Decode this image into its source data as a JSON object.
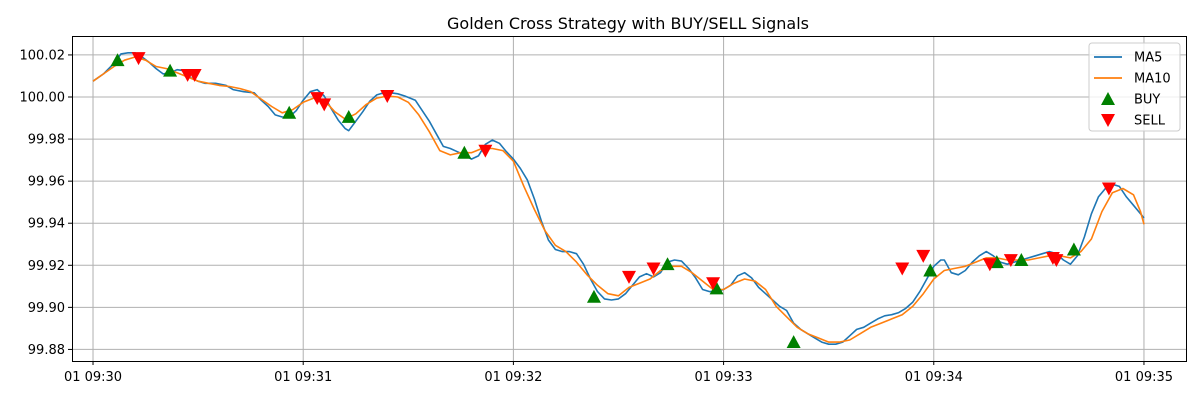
{
  "chart_data": {
    "type": "line",
    "title": "Golden Cross Strategy with BUY/SELL Signals",
    "xlabel": "",
    "ylabel": "",
    "x_range_seconds": [
      0,
      300
    ],
    "xlim_seconds": [
      -6,
      312
    ],
    "ylim": [
      99.8745,
      100.029
    ],
    "x_ticks": [
      {
        "t": 0,
        "label": "01 09:30"
      },
      {
        "t": 60,
        "label": "01 09:31"
      },
      {
        "t": 120,
        "label": "01 09:32"
      },
      {
        "t": 180,
        "label": "01 09:33"
      },
      {
        "t": 240,
        "label": "01 09:34"
      },
      {
        "t": 300,
        "label": "01 09:35"
      }
    ],
    "y_ticks": [
      {
        "v": 99.88,
        "label": "99.88"
      },
      {
        "v": 99.9,
        "label": "99.90"
      },
      {
        "v": 99.92,
        "label": "99.92"
      },
      {
        "v": 99.94,
        "label": "99.94"
      },
      {
        "v": 99.96,
        "label": "99.96"
      },
      {
        "v": 99.98,
        "label": "99.98"
      },
      {
        "v": 100.0,
        "label": "100.00"
      },
      {
        "v": 100.02,
        "label": "100.02"
      }
    ],
    "grid": true,
    "legend_position": "top-right",
    "series": [
      {
        "name": "MA5",
        "color": "#1f77b4",
        "points": [
          [
            0,
            100.0075
          ],
          [
            3,
            100.011
          ],
          [
            6,
            100.016
          ],
          [
            8,
            100.0205
          ],
          [
            10,
            100.021
          ],
          [
            12,
            100.021
          ],
          [
            14,
            100.019
          ],
          [
            16,
            100.0165
          ],
          [
            18,
            100.0135
          ],
          [
            20,
            100.011
          ],
          [
            22,
            100.0115
          ],
          [
            24,
            100.013
          ],
          [
            26,
            100.0125
          ],
          [
            28,
            100.009
          ],
          [
            30,
            100.0075
          ],
          [
            32,
            100.0065
          ],
          [
            35,
            100.0065
          ],
          [
            38,
            100.0055
          ],
          [
            40,
            100.0035
          ],
          [
            43,
            100.0025
          ],
          [
            46,
            100.002
          ],
          [
            48,
            99.9985
          ],
          [
            50,
            99.9955
          ],
          [
            52,
            99.9915
          ],
          [
            54,
            99.9905
          ],
          [
            56,
            99.9905
          ],
          [
            58,
            99.9935
          ],
          [
            60,
            99.9985
          ],
          [
            62,
            100.0025
          ],
          [
            64,
            100.0035
          ],
          [
            66,
            100.0005
          ],
          [
            68,
            99.9945
          ],
          [
            70,
            99.989
          ],
          [
            72,
            99.985
          ],
          [
            73,
            99.984
          ],
          [
            75,
            99.9885
          ],
          [
            77,
            99.993
          ],
          [
            79,
            99.998
          ],
          [
            81,
            100.001
          ],
          [
            83,
            100.002
          ],
          [
            85,
            100.002
          ],
          [
            87,
            100.0015
          ],
          [
            89,
            100.0005
          ],
          [
            92,
            99.9985
          ],
          [
            94,
            99.9935
          ],
          [
            96,
            99.9885
          ],
          [
            98,
            99.9825
          ],
          [
            100,
            99.9765
          ],
          [
            102,
            99.9755
          ],
          [
            104,
            99.974
          ],
          [
            106,
            99.9725
          ],
          [
            108,
            99.9705
          ],
          [
            110,
            99.972
          ],
          [
            112,
            99.9775
          ],
          [
            114,
            99.9795
          ],
          [
            116,
            99.978
          ],
          [
            118,
            99.974
          ],
          [
            120,
            99.9705
          ],
          [
            122,
            99.966
          ],
          [
            124,
            99.9605
          ],
          [
            126,
            99.9515
          ],
          [
            128,
            99.941
          ],
          [
            130,
            99.932
          ],
          [
            132,
            99.9275
          ],
          [
            134,
            99.9265
          ],
          [
            136,
            99.9265
          ],
          [
            138,
            99.9255
          ],
          [
            140,
            99.9205
          ],
          [
            142,
            99.9135
          ],
          [
            144,
            99.9075
          ],
          [
            146,
            99.904
          ],
          [
            148,
            99.9035
          ],
          [
            150,
            99.904
          ],
          [
            152,
            99.9065
          ],
          [
            154,
            99.9105
          ],
          [
            156,
            99.9145
          ],
          [
            158,
            99.916
          ],
          [
            160,
            99.9145
          ],
          [
            162,
            99.9165
          ],
          [
            164,
            99.9215
          ],
          [
            166,
            99.9225
          ],
          [
            168,
            99.922
          ],
          [
            170,
            99.9185
          ],
          [
            172,
            99.914
          ],
          [
            174,
            99.9085
          ],
          [
            176,
            99.9075
          ],
          [
            178,
            99.9075
          ],
          [
            180,
            99.9085
          ],
          [
            182,
            99.9105
          ],
          [
            184,
            99.915
          ],
          [
            186,
            99.9165
          ],
          [
            188,
            99.914
          ],
          [
            190,
            99.9095
          ],
          [
            192,
            99.9065
          ],
          [
            194,
            99.9035
          ],
          [
            196,
            99.9005
          ],
          [
            198,
            99.8985
          ],
          [
            200,
            99.8925
          ],
          [
            202,
            99.8895
          ],
          [
            204,
            99.8875
          ],
          [
            206,
            99.8855
          ],
          [
            208,
            99.8835
          ],
          [
            210,
            99.8825
          ],
          [
            212,
            99.8825
          ],
          [
            214,
            99.8835
          ],
          [
            216,
            99.8865
          ],
          [
            218,
            99.8895
          ],
          [
            220,
            99.8905
          ],
          [
            222,
            99.8925
          ],
          [
            224,
            99.8945
          ],
          [
            226,
            99.896
          ],
          [
            228,
            99.8965
          ],
          [
            230,
            99.8975
          ],
          [
            232,
            99.8995
          ],
          [
            234,
            99.9025
          ],
          [
            236,
            99.9075
          ],
          [
            238,
            99.9135
          ],
          [
            240,
            99.9195
          ],
          [
            242,
            99.9225
          ],
          [
            243,
            99.9225
          ],
          [
            245,
            99.9165
          ],
          [
            247,
            99.9155
          ],
          [
            249,
            99.9175
          ],
          [
            251,
            99.9215
          ],
          [
            253,
            99.9245
          ],
          [
            255,
            99.9265
          ],
          [
            257,
            99.9245
          ],
          [
            259,
            99.9215
          ],
          [
            261,
            99.9205
          ],
          [
            263,
            99.9215
          ],
          [
            265,
            99.9225
          ],
          [
            267,
            99.9235
          ],
          [
            269,
            99.9245
          ],
          [
            271,
            99.9255
          ],
          [
            273,
            99.9265
          ],
          [
            275,
            99.9255
          ],
          [
            277,
            99.9225
          ],
          [
            279,
            99.9205
          ],
          [
            281,
            99.9245
          ],
          [
            283,
            99.9335
          ],
          [
            285,
            99.9445
          ],
          [
            287,
            99.9525
          ],
          [
            289,
            99.9565
          ],
          [
            291,
            99.9585
          ],
          [
            293,
            99.9575
          ],
          [
            295,
            99.9525
          ],
          [
            297,
            99.9485
          ],
          [
            299,
            99.9445
          ],
          [
            300,
            99.9425
          ]
        ]
      },
      {
        "name": "MA10",
        "color": "#ff7f0e",
        "points": [
          [
            0,
            100.0075
          ],
          [
            3,
            100.011
          ],
          [
            6,
            100.0145
          ],
          [
            9,
            100.0175
          ],
          [
            12,
            100.019
          ],
          [
            15,
            100.0175
          ],
          [
            18,
            100.0145
          ],
          [
            21,
            100.0135
          ],
          [
            24,
            100.0115
          ],
          [
            27,
            100.0095
          ],
          [
            30,
            100.0075
          ],
          [
            33,
            100.0065
          ],
          [
            36,
            100.0055
          ],
          [
            39,
            100.005
          ],
          [
            42,
            100.004
          ],
          [
            45,
            100.0025
          ],
          [
            48,
            99.999
          ],
          [
            51,
            99.9955
          ],
          [
            54,
            99.9925
          ],
          [
            57,
            99.994
          ],
          [
            60,
            99.9975
          ],
          [
            63,
            99.9995
          ],
          [
            66,
            99.9985
          ],
          [
            69,
            99.993
          ],
          [
            72,
            99.9895
          ],
          [
            75,
            99.992
          ],
          [
            78,
            99.9965
          ],
          [
            81,
            99.9995
          ],
          [
            84,
            100.0005
          ],
          [
            87,
            100.0
          ],
          [
            90,
            99.9975
          ],
          [
            93,
            99.9915
          ],
          [
            96,
            99.9835
          ],
          [
            99,
            99.9745
          ],
          [
            102,
            99.9725
          ],
          [
            105,
            99.9735
          ],
          [
            108,
            99.9735
          ],
          [
            111,
            99.9755
          ],
          [
            114,
            99.9755
          ],
          [
            117,
            99.9745
          ],
          [
            120,
            99.9695
          ],
          [
            123,
            99.9575
          ],
          [
            126,
            99.9465
          ],
          [
            129,
            99.9365
          ],
          [
            132,
            99.9295
          ],
          [
            135,
            99.9265
          ],
          [
            138,
            99.9215
          ],
          [
            141,
            99.9155
          ],
          [
            144,
            99.9105
          ],
          [
            147,
            99.9065
          ],
          [
            150,
            99.9055
          ],
          [
            153,
            99.9095
          ],
          [
            156,
            99.9115
          ],
          [
            159,
            99.9135
          ],
          [
            162,
            99.9175
          ],
          [
            165,
            99.9195
          ],
          [
            168,
            99.9195
          ],
          [
            171,
            99.9165
          ],
          [
            174,
            99.9125
          ],
          [
            177,
            99.9085
          ],
          [
            180,
            99.9085
          ],
          [
            183,
            99.9115
          ],
          [
            186,
            99.9135
          ],
          [
            189,
            99.9125
          ],
          [
            192,
            99.9085
          ],
          [
            195,
            99.9005
          ],
          [
            198,
            99.8955
          ],
          [
            201,
            99.8905
          ],
          [
            204,
            99.8875
          ],
          [
            207,
            99.8855
          ],
          [
            210,
            99.8835
          ],
          [
            213,
            99.8835
          ],
          [
            216,
            99.8845
          ],
          [
            219,
            99.8875
          ],
          [
            222,
            99.8905
          ],
          [
            225,
            99.8925
          ],
          [
            228,
            99.8945
          ],
          [
            231,
            99.8965
          ],
          [
            234,
            99.9005
          ],
          [
            237,
            99.9065
          ],
          [
            240,
            99.9135
          ],
          [
            243,
            99.9175
          ],
          [
            246,
            99.9185
          ],
          [
            249,
            99.9195
          ],
          [
            252,
            99.9215
          ],
          [
            255,
            99.9235
          ],
          [
            258,
            99.9235
          ],
          [
            261,
            99.9225
          ],
          [
            264,
            99.9225
          ],
          [
            267,
            99.9225
          ],
          [
            270,
            99.9235
          ],
          [
            273,
            99.9245
          ],
          [
            276,
            99.9245
          ],
          [
            279,
            99.9235
          ],
          [
            282,
            99.9265
          ],
          [
            285,
            99.9325
          ],
          [
            288,
            99.9455
          ],
          [
            291,
            99.9545
          ],
          [
            294,
            99.9565
          ],
          [
            297,
            99.9535
          ],
          [
            299,
            99.9455
          ],
          [
            300,
            99.9395
          ]
        ]
      }
    ],
    "signals": {
      "BUY": {
        "color": "#008000",
        "marker": "triangle-up",
        "points": [
          [
            7,
            100.0175
          ],
          [
            22,
            100.0125
          ],
          [
            56,
            99.9925
          ],
          [
            73,
            99.9905
          ],
          [
            106,
            99.9735
          ],
          [
            143,
            99.905
          ],
          [
            164,
            99.9205
          ],
          [
            178,
            99.909
          ],
          [
            200,
            99.8835
          ],
          [
            239,
            99.9175
          ],
          [
            258,
            99.9215
          ],
          [
            265,
            99.9225
          ],
          [
            280,
            99.9275
          ]
        ]
      },
      "SELL": {
        "color": "#ff0000",
        "marker": "triangle-down",
        "points": [
          [
            13,
            100.0185
          ],
          [
            27,
            100.0105
          ],
          [
            29,
            100.0105
          ],
          [
            64,
            99.9995
          ],
          [
            66,
            99.9965
          ],
          [
            84,
            100.0005
          ],
          [
            112,
            99.9745
          ],
          [
            153,
            99.9145
          ],
          [
            160,
            99.9185
          ],
          [
            177,
            99.9115
          ],
          [
            231,
            99.9185
          ],
          [
            237,
            99.9245
          ],
          [
            256,
            99.9205
          ],
          [
            262,
            99.9225
          ],
          [
            274,
            99.9235
          ],
          [
            275,
            99.9225
          ],
          [
            290,
            99.9565
          ]
        ]
      }
    }
  }
}
